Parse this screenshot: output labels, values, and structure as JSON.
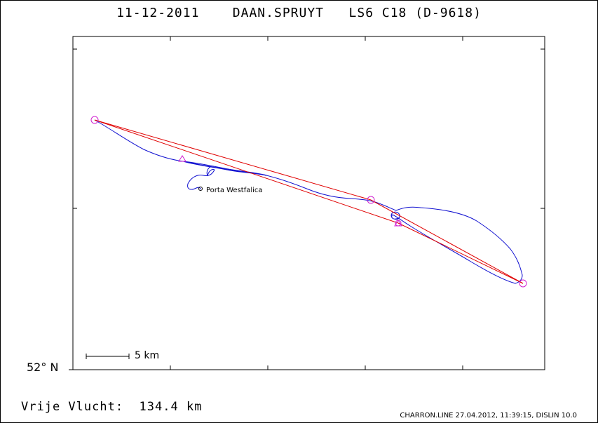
{
  "header": {
    "date": "11-12-2011",
    "pilot": "DAAN.SPRUYT",
    "glider": "LS6 C18 (D-9618)"
  },
  "map": {
    "latitude_label": "52° N",
    "scale_label": "5 km",
    "place_label": "Porta Westfalica",
    "colors": {
      "track": "#1010d0",
      "task_line": "#e00000",
      "turnpoint": "#d020d0",
      "frame": "#000000"
    }
  },
  "footer": {
    "free_flight_label": "Vrije Vlucht:",
    "free_flight_distance": "134.4 km",
    "credits": "CHARRON.LINE 27.04.2012, 11:39:15, DISLIN 10.0"
  }
}
